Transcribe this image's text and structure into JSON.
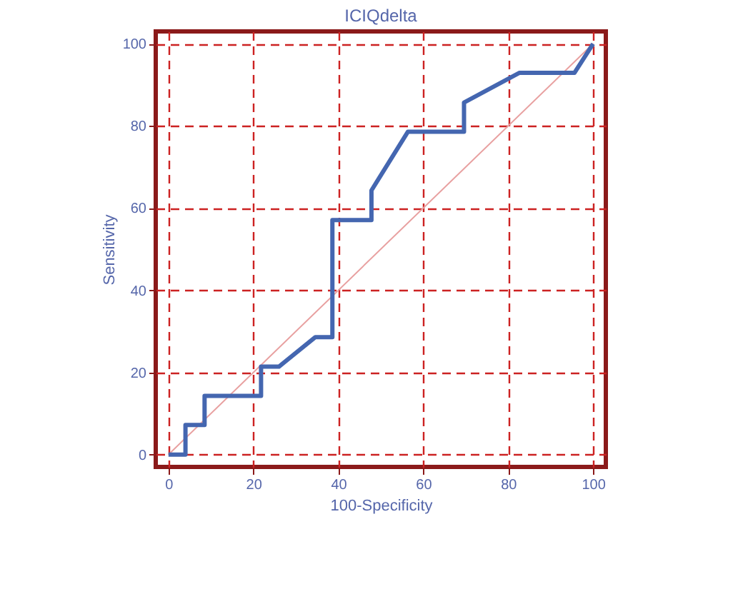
{
  "chart_data": {
    "type": "line",
    "title": "ICIQdelta",
    "xlabel": "100-Specificity",
    "ylabel": "Sensitivity",
    "xlim": [
      -3,
      103
    ],
    "ylim": [
      -3,
      103
    ],
    "xticks": [
      0,
      20,
      40,
      60,
      80,
      100
    ],
    "yticks": [
      0,
      20,
      40,
      60,
      80,
      100
    ],
    "grid": true,
    "marker": "none",
    "series": [
      {
        "color": "#4466b0",
        "line_style": "solid",
        "x": [
          0,
          4,
          4,
          8.5,
          8.5,
          21.8,
          21.8,
          26,
          34.6,
          38.6,
          38.6,
          47.8,
          47.8,
          56.4,
          69.6,
          69.6,
          82.6,
          95.6,
          100
        ],
        "values": [
          0,
          0,
          7.2,
          7.2,
          14.3,
          14.3,
          21.4,
          21.4,
          28.6,
          28.6,
          57.1,
          57.1,
          64.3,
          78.6,
          78.6,
          85.7,
          92.9,
          92.9,
          100
        ]
      },
      {
        "color": "#e8a0a0",
        "line_style": "solid",
        "x": [
          0,
          100
        ],
        "values": [
          0,
          100
        ]
      }
    ]
  }
}
